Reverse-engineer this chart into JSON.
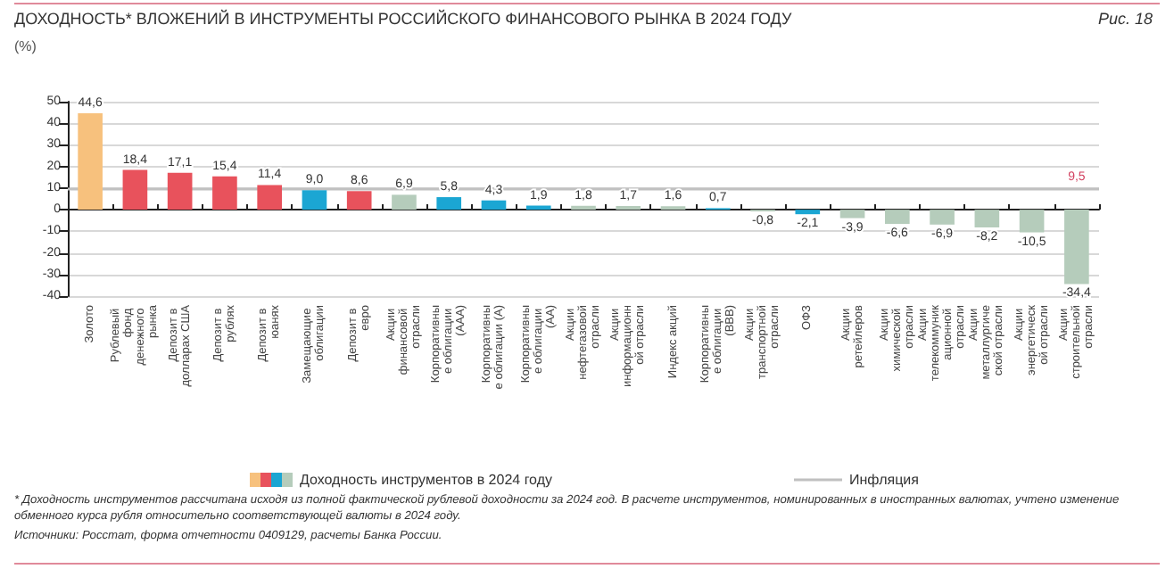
{
  "chart_data": {
    "type": "bar",
    "title": "ДОХОДНОСТЬ* ВЛОЖЕНИЙ В ИНСТРУМЕНТЫ РОССИЙСКОГО ФИНАНСОВОГО РЫНКА В 2024 ГОДУ",
    "subtitle": "Рис. 18",
    "ylabel": "(%)",
    "categories": [
      "Золото",
      "Рублевый фонд денежного рынка",
      "Депозит в долларах США",
      "Депозит в рублях",
      "Депозит в юанях",
      "Замещающие облигации",
      "Депозит в евро",
      "Акции финансовой отрасли",
      "Корпоративные облигации (AAA)",
      "Корпоративные облигации (A)",
      "Корпоративные облигации (AA)",
      "Акции нефтегазовой отрасли",
      "Акции информационной отрасли",
      "Индекс акций",
      "Корпоративные облигации (BBB)",
      "Акции транспортной отрасли",
      "ОФЗ",
      "Акции ретейлеров",
      "Акции химической отрасли",
      "Акции телекоммуникационной отрасли",
      "Акции металлургической отрасли",
      "Акции энергетической отрасли",
      "Акции строительной отрасли"
    ],
    "series": [
      {
        "name": "Доходность инструментов в 2024 году",
        "values": [
          44.6,
          18.4,
          17.1,
          15.4,
          11.4,
          9.0,
          8.6,
          6.9,
          5.8,
          4.3,
          1.9,
          1.8,
          1.7,
          1.6,
          0.7,
          -0.8,
          -2.1,
          -3.9,
          -6.6,
          -6.9,
          -8.2,
          -10.5,
          -34.4
        ],
        "value_labels": [
          "44,6",
          "18,4",
          "17,1",
          "15,4",
          "11,4",
          "9,0",
          "8,6",
          "6,9",
          "5,8",
          "4,3",
          "1,9",
          "1,8",
          "1,7",
          "1,6",
          "0,7",
          "-0,8",
          "-2,1",
          "-3,9",
          "-6,6",
          "-6,9",
          "-8,2",
          "-10,5",
          "-34,4"
        ],
        "colors": [
          "#f7c17d",
          "#e8525c",
          "#e8525c",
          "#e8525c",
          "#e8525c",
          "#1ba6d3",
          "#e8525c",
          "#b5ccbb",
          "#1ba6d3",
          "#1ba6d3",
          "#1ba6d3",
          "#b5ccbb",
          "#b5ccbb",
          "#b5ccbb",
          "#1ba6d3",
          "#b5ccbb",
          "#1ba6d3",
          "#b5ccbb",
          "#b5ccbb",
          "#b5ccbb",
          "#b5ccbb",
          "#b5ccbb",
          "#b5ccbb"
        ]
      }
    ],
    "ylim": [
      -40,
      50
    ],
    "yticks": [
      -40,
      -30,
      -20,
      -10,
      0,
      10,
      20,
      30,
      40,
      50
    ],
    "grid": "y",
    "legend": "bottom",
    "ref_lines": [
      {
        "axis": "y",
        "value": 9.5,
        "label": "Инфляция",
        "color": "#c0c0c0"
      }
    ],
    "annotations": [
      {
        "text": "9,5",
        "x": "Акции строительной отрасли",
        "y": 9.5
      },
      "* Доходность инструментов рассчитана исходя из полной фактической рублевой доходности за 2024 год. В расчете инструментов, номинированных в иностранных валютах, учтено изменение обменного курса рубля относительно соответствующей валюты в 2024 году.",
      "Источники: Росстат, форма отчетности 0409129, расчеты Банка России."
    ]
  }
}
